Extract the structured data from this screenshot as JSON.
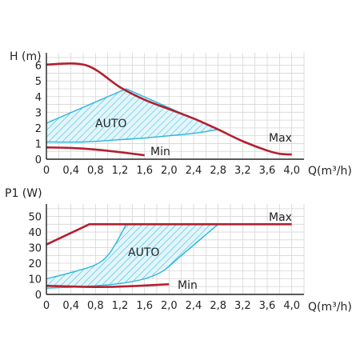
{
  "chart_data": [
    {
      "type": "line",
      "ylabel": "H (m)",
      "xlabel": "Q(m³/h)",
      "xlim": [
        0,
        4.2
      ],
      "ylim": [
        0,
        6.8
      ],
      "x_ticks": [
        "0",
        "0,4",
        "0,8",
        "1,2",
        "1,6",
        "2,0",
        "2,4",
        "2,8",
        "3,2",
        "3,6",
        "4,0"
      ],
      "y_ticks": [
        "0",
        "1",
        "2",
        "3",
        "4",
        "5",
        "6"
      ],
      "grid": true,
      "colors": {
        "curve": "#b3202f",
        "auto": "#29b6d8"
      },
      "series": [
        {
          "name": "Max",
          "x": [
            0,
            0.65,
            1.2,
            1.6,
            2.0,
            2.4,
            2.8,
            3.2,
            3.6,
            3.8,
            4.0
          ],
          "y": [
            6.05,
            6.0,
            4.6,
            3.8,
            3.2,
            2.6,
            1.9,
            1.15,
            0.55,
            0.35,
            0.3
          ]
        },
        {
          "name": "Min",
          "x": [
            0,
            0.4,
            0.8,
            1.2,
            1.6
          ],
          "y": [
            0.75,
            0.72,
            0.62,
            0.45,
            0.25
          ]
        },
        {
          "name": "AUTO",
          "upper": {
            "x": [
              0,
              1.3,
              2.8
            ],
            "y": [
              2.3,
              4.5,
              1.9
            ]
          },
          "lower": {
            "x": [
              0,
              0.6,
              1.2,
              1.6,
              2.0,
              2.4,
              2.8
            ],
            "y": [
              1.1,
              1.1,
              1.25,
              1.35,
              1.5,
              1.65,
              1.9
            ]
          }
        }
      ]
    },
    {
      "type": "line",
      "ylabel": "P1 (W)",
      "xlabel": "Q(m³/h)",
      "xlim": [
        0,
        4.2
      ],
      "ylim": [
        0,
        58
      ],
      "x_ticks": [
        "0",
        "0,4",
        "0,8",
        "1,2",
        "1,6",
        "2,0",
        "2,4",
        "2,8",
        "3,2",
        "3,6",
        "4,0"
      ],
      "y_ticks": [
        "0",
        "10",
        "20",
        "30",
        "40",
        "50"
      ],
      "grid": true,
      "colors": {
        "curve": "#b3202f",
        "auto": "#29b6d8"
      },
      "series": [
        {
          "name": "Max",
          "x": [
            0,
            0.7,
            4.0
          ],
          "y": [
            32,
            45,
            45
          ]
        },
        {
          "name": "Min",
          "x": [
            0,
            0.5,
            1.0,
            1.5,
            2.0
          ],
          "y": [
            5.5,
            5.0,
            4.8,
            5.5,
            6.5
          ]
        },
        {
          "name": "AUTO",
          "upper": {
            "x": [
              0,
              0.4,
              0.8,
              1.0,
              1.15,
              1.3
            ],
            "y": [
              10,
              14,
              19,
              25,
              34,
              45
            ]
          },
          "lower": {
            "x": [
              0,
              0.6,
              1.2,
              1.6,
              1.9,
              2.2,
              2.5,
              2.8
            ],
            "y": [
              4,
              5,
              7,
              10,
              15,
              25,
              35,
              45
            ]
          }
        }
      ]
    }
  ]
}
